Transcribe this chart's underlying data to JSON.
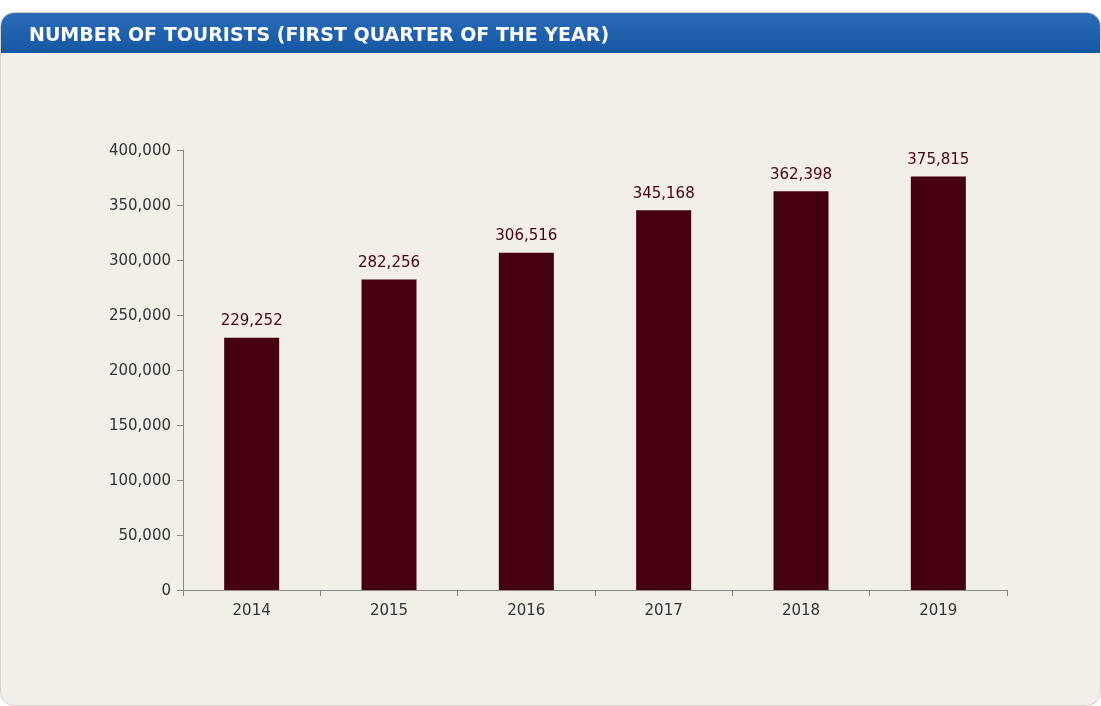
{
  "chart_data": {
    "type": "bar",
    "title": "NUMBER OF TOURISTS (FIRST QUARTER OF THE YEAR)",
    "categories": [
      "2014",
      "2015",
      "2016",
      "2017",
      "2018",
      "2019"
    ],
    "values": [
      229252,
      282256,
      306516,
      345168,
      362398,
      375815
    ],
    "value_labels": [
      "229,252",
      "282,256",
      "306,516",
      "345,168",
      "362,398",
      "375,815"
    ],
    "color": "#45000f",
    "ylim": [
      0,
      400000
    ],
    "yticks": [
      0,
      {
        "value": 50000,
        "label": "50,000"
      },
      {
        "value": 100000,
        "label": "100,000"
      },
      {
        "value": 150000,
        "label": "150,000"
      },
      {
        "value": 200000,
        "label": "200,000"
      },
      {
        "value": 250000,
        "label": "250,000"
      },
      {
        "value": 300000,
        "label": "300,000"
      },
      {
        "value": 350000,
        "label": "350,000"
      },
      {
        "value": 400000,
        "label": "400,000"
      }
    ],
    "grid": false
  }
}
